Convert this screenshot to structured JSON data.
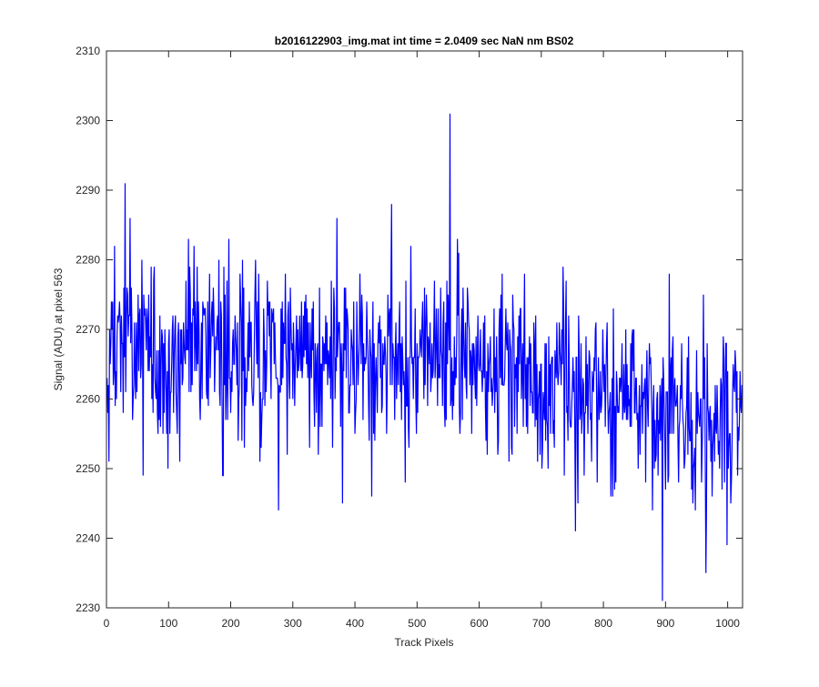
{
  "chart_data": {
    "type": "line",
    "title": "b2016122903_img.mat int time = 2.0409 sec  NaN nm BS02",
    "xlabel": "Track Pixels",
    "ylabel": "Signal (ADU) at pixel 563",
    "xlim": [
      0,
      1024
    ],
    "ylim": [
      2230,
      2310
    ],
    "xticks": [
      0,
      100,
      200,
      300,
      400,
      500,
      600,
      700,
      800,
      900,
      1000
    ],
    "yticks": [
      2230,
      2240,
      2250,
      2260,
      2270,
      2280,
      2290,
      2300,
      2310
    ],
    "grid": false,
    "legend": "none",
    "series": [
      {
        "color": "#0000ff",
        "x_start": 1,
        "x_step": 1,
        "count": 1024,
        "trend_points": [
          [
            1,
            2268
          ],
          [
            200,
            2267
          ],
          [
            400,
            2266
          ],
          [
            600,
            2265
          ],
          [
            700,
            2264
          ],
          [
            850,
            2258
          ],
          [
            1024,
            2257
          ]
        ],
        "noise_sd": 6.5,
        "random_seed": 563,
        "features": [
          {
            "x": 30,
            "y": 2291
          },
          {
            "x": 38,
            "y": 2286
          },
          {
            "x": 99,
            "y": 2250
          },
          {
            "x": 187,
            "y": 2249
          },
          {
            "x": 371,
            "y": 2286
          },
          {
            "x": 380,
            "y": 2245
          },
          {
            "x": 553,
            "y": 2301
          },
          {
            "x": 755,
            "y": 2241
          },
          {
            "x": 895,
            "y": 2231
          },
          {
            "x": 965,
            "y": 2235
          }
        ]
      }
    ]
  }
}
